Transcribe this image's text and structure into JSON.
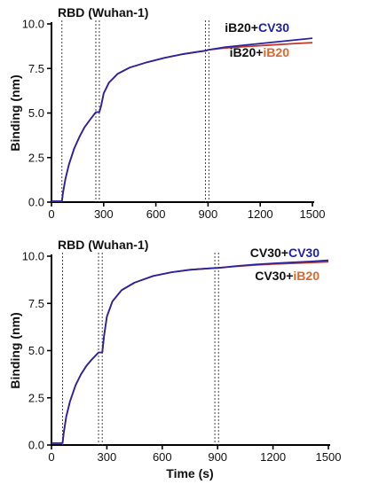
{
  "chart_data": [
    {
      "type": "line",
      "title": "RBD (Wuhan-1)",
      "xlabel": "",
      "ylabel": "Binding (nm)",
      "xlim": [
        0,
        1500
      ],
      "ylim": [
        0,
        10
      ],
      "xticks": [
        "0",
        "300",
        "600",
        "900",
        "1200",
        "1500"
      ],
      "yticks": [
        "0.0",
        "2.5",
        "5.0",
        "7.5",
        "10.0"
      ],
      "event_lines_s": [
        60,
        255,
        275,
        885,
        905
      ],
      "legend": [
        {
          "prefix": "iB20+",
          "suffix": "CV30",
          "suffix_color": "#1c1fa8"
        },
        {
          "prefix": "iB20+",
          "suffix": "iB20",
          "suffix_color": "#e0662a"
        }
      ],
      "series": [
        {
          "name": "iB20+CV30",
          "color": "#2a23a0",
          "x": [
            0,
            60,
            66,
            80,
            100,
            130,
            160,
            190,
            220,
            255,
            275,
            285,
            300,
            330,
            380,
            450,
            550,
            650,
            750,
            850,
            885,
            905,
            1000,
            1100,
            1200,
            1300,
            1400,
            1500
          ],
          "y": [
            0.05,
            0.05,
            0.5,
            1.3,
            2.1,
            3.0,
            3.65,
            4.2,
            4.6,
            5.05,
            5.05,
            5.4,
            6.1,
            6.7,
            7.2,
            7.55,
            7.85,
            8.1,
            8.3,
            8.45,
            8.5,
            8.55,
            8.7,
            8.8,
            8.9,
            9.0,
            9.1,
            9.2
          ]
        },
        {
          "name": "iB20+iB20",
          "color": "#c0392b",
          "x": [
            0,
            60,
            66,
            80,
            100,
            130,
            160,
            190,
            220,
            255,
            275,
            285,
            300,
            330,
            380,
            450,
            550,
            650,
            750,
            850,
            885,
            905,
            1000,
            1100,
            1200,
            1300,
            1400,
            1500
          ],
          "y": [
            0.05,
            0.05,
            0.5,
            1.3,
            2.1,
            3.0,
            3.65,
            4.2,
            4.6,
            5.05,
            5.05,
            5.4,
            6.1,
            6.7,
            7.2,
            7.55,
            7.85,
            8.1,
            8.3,
            8.45,
            8.5,
            8.55,
            8.65,
            8.72,
            8.78,
            8.84,
            8.9,
            8.95
          ]
        }
      ]
    },
    {
      "type": "line",
      "title": "RBD (Wuhan-1)",
      "xlabel": "Time (s)",
      "ylabel": "Binding (nm)",
      "xlim": [
        0,
        1500
      ],
      "ylim": [
        0,
        10
      ],
      "xticks": [
        "0",
        "300",
        "600",
        "900",
        "1200",
        "1500"
      ],
      "yticks": [
        "0.0",
        "2.5",
        "5.0",
        "7.5",
        "10.0"
      ],
      "event_lines_s": [
        60,
        255,
        275,
        885,
        905
      ],
      "legend": [
        {
          "prefix": "CV30+",
          "suffix": "CV30",
          "suffix_color": "#1c1fa8"
        },
        {
          "prefix": "CV30+",
          "suffix": "iB20",
          "suffix_color": "#e0662a"
        }
      ],
      "series": [
        {
          "name": "CV30+CV30",
          "color": "#2a23a0",
          "x": [
            0,
            60,
            66,
            80,
            100,
            130,
            160,
            190,
            220,
            255,
            275,
            285,
            300,
            330,
            380,
            450,
            550,
            650,
            750,
            850,
            885,
            905,
            1000,
            1100,
            1200,
            1300,
            1400,
            1500
          ],
          "y": [
            0.1,
            0.1,
            0.6,
            1.5,
            2.3,
            3.15,
            3.75,
            4.2,
            4.55,
            4.9,
            4.9,
            5.8,
            6.8,
            7.6,
            8.2,
            8.6,
            8.95,
            9.15,
            9.28,
            9.35,
            9.37,
            9.38,
            9.48,
            9.56,
            9.62,
            9.67,
            9.72,
            9.78
          ]
        },
        {
          "name": "CV30+iB20",
          "color": "#c0392b",
          "x": [
            0,
            60,
            66,
            80,
            100,
            130,
            160,
            190,
            220,
            255,
            275,
            285,
            300,
            330,
            380,
            450,
            550,
            650,
            750,
            850,
            885,
            905,
            1000,
            1100,
            1200,
            1300,
            1400,
            1500
          ],
          "y": [
            0.1,
            0.1,
            0.6,
            1.5,
            2.3,
            3.15,
            3.75,
            4.2,
            4.55,
            4.9,
            4.9,
            5.8,
            6.8,
            7.6,
            8.2,
            8.6,
            8.95,
            9.15,
            9.28,
            9.35,
            9.37,
            9.38,
            9.46,
            9.53,
            9.58,
            9.62,
            9.66,
            9.7
          ]
        }
      ]
    }
  ]
}
